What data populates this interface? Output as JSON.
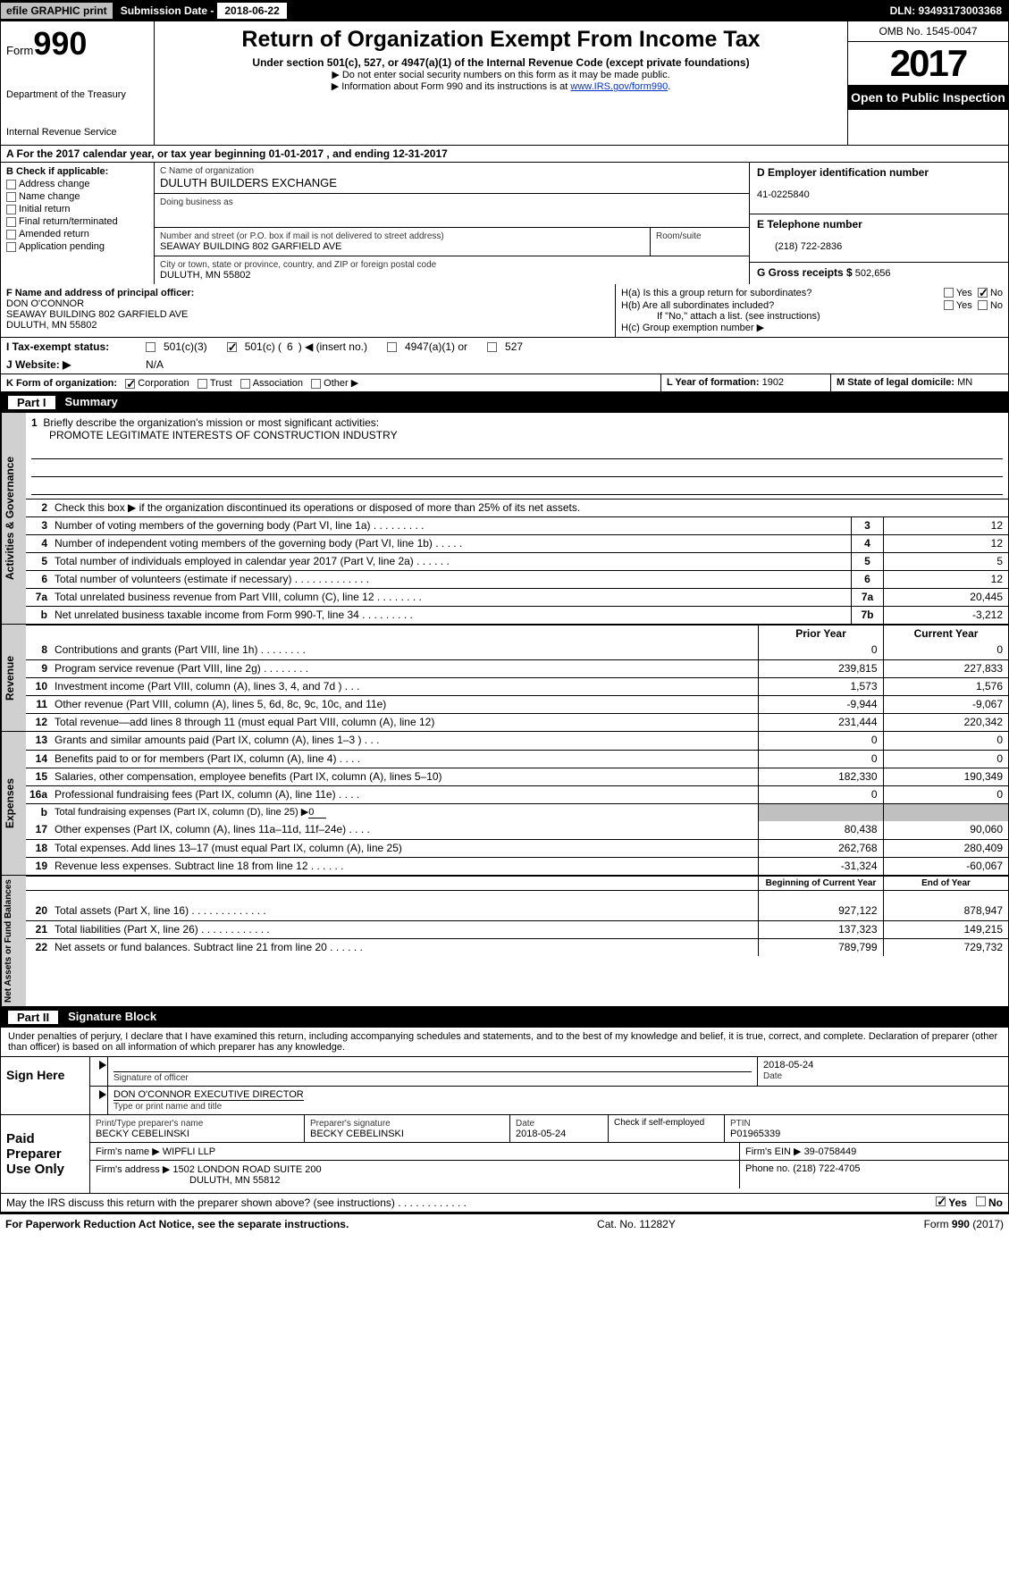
{
  "topbar": {
    "efile": "efile GRAPHIC print",
    "sub_lbl": "Submission Date -",
    "sub_val": "2018-06-22",
    "dln": "DLN: 93493173003368"
  },
  "header": {
    "form_prefix": "Form",
    "form_num": "990",
    "dept1": "Department of the Treasury",
    "dept2": "Internal Revenue Service",
    "title": "Return of Organization Exempt From Income Tax",
    "sub": "Under section 501(c), 527, or 4947(a)(1) of the Internal Revenue Code (except private foundations)",
    "note1": "▶ Do not enter social security numbers on this form as it may be made public.",
    "note2": "▶ Information about Form 990 and its instructions is at ",
    "link": "www.IRS.gov/form990",
    "omb": "OMB No. 1545-0047",
    "year": "2017",
    "open": "Open to Public Inspection"
  },
  "rowA": {
    "pre": "A  For the 2017 calendar year, or tax year beginning ",
    "begin": "01-01-2017",
    "mid": "   , and ending ",
    "end": "12-31-2017"
  },
  "B": {
    "hdr": "B Check if applicable:",
    "opts": [
      "Address change",
      "Name change",
      "Initial return",
      "Final return/terminated",
      "Amended return",
      "Application pending"
    ]
  },
  "C": {
    "name_lbl": "C Name of organization",
    "name": "DULUTH BUILDERS EXCHANGE",
    "dba_lbl": "Doing business as",
    "dba": "",
    "addr_lbl": "Number and street (or P.O. box if mail is not delivered to street address)",
    "addr": "SEAWAY BUILDING 802 GARFIELD AVE",
    "room_lbl": "Room/suite",
    "city_lbl": "City or town, state or province, country, and ZIP or foreign postal code",
    "city": "DULUTH, MN  55802"
  },
  "D": {
    "lbl": "D Employer identification number",
    "val": "41-0225840"
  },
  "E": {
    "lbl": "E Telephone number",
    "val": "(218) 722-2836"
  },
  "G": {
    "lbl": "G Gross receipts $",
    "val": "502,656"
  },
  "F": {
    "lbl": "F  Name and address of principal officer:",
    "name": "DON O'CONNOR",
    "addr": "SEAWAY BUILDING 802 GARFIELD AVE",
    "city": "DULUTH, MN   55802"
  },
  "H": {
    "a": "H(a)  Is this a group return for subordinates?",
    "b": "H(b)  Are all subordinates included?",
    "note": "If \"No,\" attach a list. (see instructions)",
    "c": "H(c)  Group exemption number ▶",
    "yes": "Yes",
    "no": "No",
    "a_ans": "No",
    "b_ans": ""
  },
  "I": {
    "lbl": "I   Tax-exempt status:",
    "o1": "501(c)(3)",
    "o2": "501(c) (",
    "o2n": "6",
    "o2s": ") ◀ (insert no.)",
    "o3": "4947(a)(1) or",
    "o4": "527"
  },
  "J": {
    "lbl": "J   Website: ▶",
    "val": "N/A"
  },
  "K": {
    "lbl": "K Form of organization:",
    "opts": [
      "Corporation",
      "Trust",
      "Association",
      "Other ▶"
    ],
    "checked": 0
  },
  "L": {
    "lbl": "L Year of formation:",
    "val": "1902"
  },
  "M": {
    "lbl": "M State of legal domicile:",
    "val": "MN"
  },
  "part1": {
    "tab": "Part I",
    "title": "Summary"
  },
  "gov": {
    "vtab": "Activities & Governance",
    "l1": "Briefly describe the organization's mission or most significant activities:",
    "l1v": "PROMOTE LEGITIMATE INTERESTS OF CONSTRUCTION INDUSTRY",
    "l2": "Check this box ▶        if the organization discontinued its operations or disposed of more than 25% of its net assets.",
    "l3": "Number of voting members of the governing body (Part VI, line 1a)   .    .    .    .    .    .    .    .    .",
    "l3v": "12",
    "l4": "Number of independent voting members of the governing body (Part VI, line 1b)    .    .    .    .    .",
    "l4v": "12",
    "l5": "Total number of individuals employed in calendar year 2017 (Part V, line 2a)    .    .    .    .    .    .",
    "l5v": "5",
    "l6": "Total number of volunteers (estimate if necessary)   .    .    .    .    .    .    .    .    .    .    .    .    .",
    "l6v": "12",
    "l7a": "Total unrelated business revenue from Part VIII, column (C), line 12   .    .    .    .    .    .    .    .",
    "l7av": "20,445",
    "l7b": "Net unrelated business taxable income from Form 990-T, line 34   .    .    .    .    .    .    .    .    .",
    "l7bv": "-3,212"
  },
  "yrhdr": {
    "py": "Prior Year",
    "cy": "Current Year",
    "by": "Beginning of Current Year",
    "ey": "End of Year"
  },
  "rev": {
    "vtab": "Revenue",
    "rows": [
      {
        "n": "8",
        "d": "Contributions and grants (Part VIII, line 1h)    .    .    .    .    .    .    .    .",
        "p": "0",
        "c": "0"
      },
      {
        "n": "9",
        "d": "Program service revenue (Part VIII, line 2g)    .    .    .    .    .    .    .    .",
        "p": "239,815",
        "c": "227,833"
      },
      {
        "n": "10",
        "d": "Investment income (Part VIII, column (A), lines 3, 4, and 7d )    .    .    .",
        "p": "1,573",
        "c": "1,576"
      },
      {
        "n": "11",
        "d": "Other revenue (Part VIII, column (A), lines 5, 6d, 8c, 9c, 10c, and 11e)",
        "p": "-9,944",
        "c": "-9,067"
      },
      {
        "n": "12",
        "d": "Total revenue—add lines 8 through 11 (must equal Part VIII, column (A), line 12)",
        "p": "231,444",
        "c": "220,342"
      }
    ]
  },
  "exp": {
    "vtab": "Expenses",
    "rows": [
      {
        "n": "13",
        "d": "Grants and similar amounts paid (Part IX, column (A), lines 1–3 )   .    .    .",
        "p": "0",
        "c": "0"
      },
      {
        "n": "14",
        "d": "Benefits paid to or for members (Part IX, column (A), line 4)   .    .    .    .",
        "p": "0",
        "c": "0"
      },
      {
        "n": "15",
        "d": "Salaries, other compensation, employee benefits (Part IX, column (A), lines 5–10)",
        "p": "182,330",
        "c": "190,349"
      },
      {
        "n": "16a",
        "d": "Professional fundraising fees (Part IX, column (A), line 11e)   .    .    .    .",
        "p": "0",
        "c": "0"
      }
    ],
    "l16b": "Total fundraising expenses (Part IX, column (D), line 25) ▶",
    "l16bv": "0",
    "rows2": [
      {
        "n": "17",
        "d": "Other expenses (Part IX, column (A), lines 11a–11d, 11f–24e)   .    .    .    .",
        "p": "80,438",
        "c": "90,060"
      },
      {
        "n": "18",
        "d": "Total expenses. Add lines 13–17 (must equal Part IX, column (A), line 25)",
        "p": "262,768",
        "c": "280,409"
      },
      {
        "n": "19",
        "d": "Revenue less expenses. Subtract line 18 from line 12   .    .    .    .    .    .",
        "p": "-31,324",
        "c": "-60,067"
      }
    ]
  },
  "na": {
    "vtab": "Net Assets or Fund Balances",
    "rows": [
      {
        "n": "20",
        "d": "Total assets (Part X, line 16)   .    .    .    .    .    .    .    .    .    .    .    .    .",
        "p": "927,122",
        "c": "878,947"
      },
      {
        "n": "21",
        "d": "Total liabilities (Part X, line 26)   .    .    .    .    .    .    .    .    .    .    .    .",
        "p": "137,323",
        "c": "149,215"
      },
      {
        "n": "22",
        "d": "Net assets or fund balances. Subtract line 21 from line 20 .    .    .    .    .    .",
        "p": "789,799",
        "c": "729,732"
      }
    ]
  },
  "part2": {
    "tab": "Part II",
    "title": "Signature Block"
  },
  "sig": {
    "perj": "Under penalties of perjury, I declare that I have examined this return, including accompanying schedules and statements, and to the best of my knowledge and belief, it is true, correct, and complete. Declaration of preparer (other than officer) is based on all information of which preparer has any knowledge.",
    "sign_here": "Sign Here",
    "sig_of": "Signature of officer",
    "date": "Date",
    "date_v": "2018-05-24",
    "name": "DON O'CONNOR  EXECUTIVE DIRECTOR",
    "name_lbl": "Type or print name and title",
    "paid": "Paid Preparer Use Only",
    "p_name_lbl": "Print/Type preparer's name",
    "p_name": "BECKY CEBELINSKI",
    "p_sig_lbl": "Preparer's signature",
    "p_sig": "BECKY CEBELINSKI",
    "p_date_lbl": "Date",
    "p_date": "2018-05-24",
    "p_chk": "Check         if self-employed",
    "ptin_lbl": "PTIN",
    "ptin": "P01965339",
    "firm_n_lbl": "Firm's name      ▶",
    "firm_n": "WIPFLI LLP",
    "firm_ein_lbl": "Firm's EIN ▶",
    "firm_ein": "39-0758449",
    "firm_a_lbl": "Firm's address ▶",
    "firm_a1": "1502 LONDON ROAD SUITE 200",
    "firm_a2": "DULUTH, MN   55812",
    "phone_lbl": "Phone no.",
    "phone": "(218) 722-4705"
  },
  "discuss": {
    "q": "May the IRS discuss this return with the preparer shown above? (see instructions)    .    .    .    .    .    .    .    .    .    .    .    .",
    "yes": "Yes",
    "no": "No"
  },
  "footer": {
    "l": "For Paperwork Reduction Act Notice, see the separate instructions.",
    "m": "Cat. No. 11282Y",
    "r": "Form 990 (2017)"
  }
}
